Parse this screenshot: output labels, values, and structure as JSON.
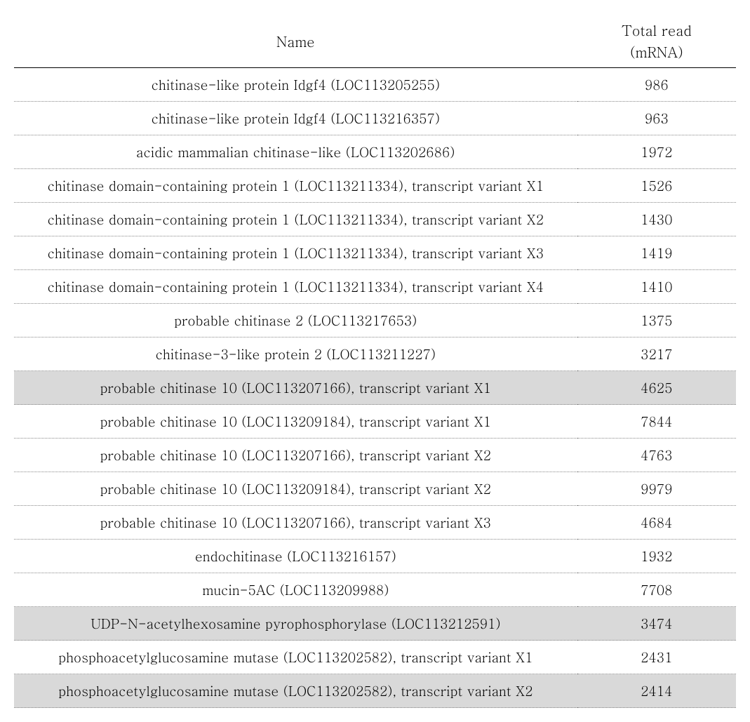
{
  "table": {
    "header": {
      "name_col": "Name",
      "read_col_line1": "Total read",
      "read_col_line2": "(mRNA)"
    },
    "rows": [
      {
        "name": "chitinase-like protein Idgf4 (LOC113205255)",
        "value": "986",
        "highlight": false
      },
      {
        "name": "chitinase-like protein Idgf4 (LOC113216357)",
        "value": "963",
        "highlight": false
      },
      {
        "name": "acidic mammalian chitinase-like (LOC113202686)",
        "value": "1972",
        "highlight": false
      },
      {
        "name": "chitinase domain-containing protein 1 (LOC113211334), transcript variant X1",
        "value": "1526",
        "highlight": false
      },
      {
        "name": "chitinase domain-containing protein 1 (LOC113211334), transcript variant X2",
        "value": "1430",
        "highlight": false
      },
      {
        "name": "chitinase domain-containing protein 1 (LOC113211334), transcript variant X3",
        "value": "1419",
        "highlight": false
      },
      {
        "name": "chitinase domain-containing protein 1 (LOC113211334), transcript variant X4",
        "value": "1410",
        "highlight": false
      },
      {
        "name": "probable chitinase 2 (LOC113217653)",
        "value": "1375",
        "highlight": false
      },
      {
        "name": "chitinase-3-like protein 2 (LOC113211227)",
        "value": "3217",
        "highlight": false
      },
      {
        "name": "probable chitinase 10 (LOC113207166), transcript variant X1",
        "value": "4625",
        "highlight": true
      },
      {
        "name": "probable chitinase 10 (LOC113209184), transcript variant X1",
        "value": "7844",
        "highlight": false
      },
      {
        "name": "probable chitinase 10 (LOC113207166), transcript variant X2",
        "value": "4763",
        "highlight": false
      },
      {
        "name": "probable chitinase 10 (LOC113209184), transcript variant X2",
        "value": "9979",
        "highlight": false
      },
      {
        "name": "probable chitinase 10 (LOC113207166), transcript variant X3",
        "value": "4684",
        "highlight": false
      },
      {
        "name": "endochitinase (LOC113216157)",
        "value": "1932",
        "highlight": false
      },
      {
        "name": "mucin-5AC (LOC113209988)",
        "value": "7708",
        "highlight": false
      },
      {
        "name": "UDP-N-acetylhexosamine pyrophosphorylase (LOC113212591)",
        "value": "3474",
        "highlight": true
      },
      {
        "name": "phosphoacetylglucosamine mutase (LOC113202582), transcript variant X1",
        "value": "2431",
        "highlight": false
      },
      {
        "name": "phosphoacetylglucosamine mutase (LOC113202582), transcript variant X2",
        "value": "2414",
        "highlight": true
      }
    ]
  },
  "colors": {
    "background": "#ffffff",
    "highlight_row": "#d9d9d9",
    "text": "#000000",
    "header_border": "#000000",
    "row_border": "#888888"
  },
  "typography": {
    "header_fontsize_pt": 15,
    "cell_fontsize_pt": 14,
    "font_family": "serif"
  },
  "layout": {
    "name_col_width_pct": 78,
    "value_col_width_pct": 22
  }
}
